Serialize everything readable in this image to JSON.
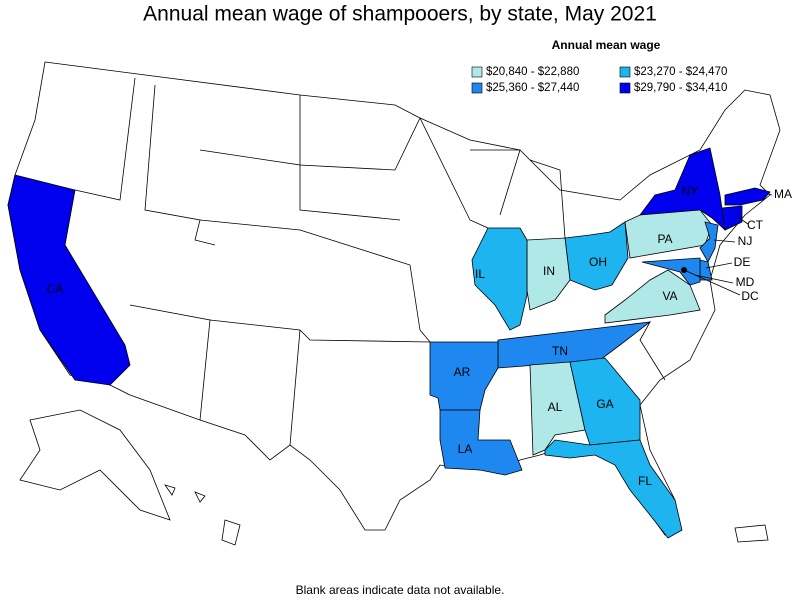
{
  "title": "Annual mean wage of shampooers, by state, May 2021",
  "legend": {
    "title": "Annual mean wage",
    "entries": [
      {
        "label": "$20,840 - $22,880",
        "color": "#b0e8e8"
      },
      {
        "label": "$23,270 - $24,470",
        "color": "#1eb4f0"
      },
      {
        "label": "$25,360 - $27,440",
        "color": "#1e88f0"
      },
      {
        "label": "$29,790 - $34,410",
        "color": "#0000ee"
      }
    ]
  },
  "states": [
    {
      "abbr": "CA",
      "bin": 3
    },
    {
      "abbr": "NY",
      "bin": 3
    },
    {
      "abbr": "MA",
      "bin": 3
    },
    {
      "abbr": "CT",
      "bin": 3
    },
    {
      "abbr": "PA",
      "bin": 0
    },
    {
      "abbr": "NJ",
      "bin": 2
    },
    {
      "abbr": "DE",
      "bin": 2
    },
    {
      "abbr": "MD",
      "bin": 2
    },
    {
      "abbr": "DC",
      "bin": 3
    },
    {
      "abbr": "VA",
      "bin": 0
    },
    {
      "abbr": "OH",
      "bin": 1
    },
    {
      "abbr": "IN",
      "bin": 0
    },
    {
      "abbr": "IL",
      "bin": 1
    },
    {
      "abbr": "TN",
      "bin": 2
    },
    {
      "abbr": "AR",
      "bin": 2
    },
    {
      "abbr": "LA",
      "bin": 2
    },
    {
      "abbr": "AL",
      "bin": 0
    },
    {
      "abbr": "GA",
      "bin": 1
    },
    {
      "abbr": "FL",
      "bin": 1
    }
  ],
  "footnote": "Blank areas indicate data not available."
}
